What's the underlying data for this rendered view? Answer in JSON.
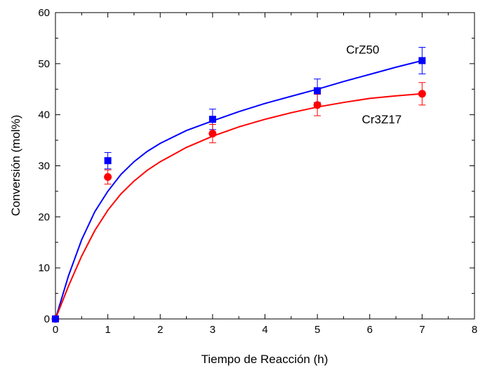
{
  "chart_data": {
    "type": "scatter",
    "xlabel": "Tiempo de Reacción (h)",
    "ylabel": "Conversión (mol%)",
    "xlim": [
      0,
      8
    ],
    "ylim": [
      0,
      60
    ],
    "x_ticks": [
      0,
      1,
      2,
      3,
      4,
      5,
      6,
      7,
      8
    ],
    "y_ticks": [
      0,
      10,
      20,
      30,
      40,
      50,
      60
    ],
    "x_tick_labels": [
      "0",
      "1",
      "2",
      "3",
      "4",
      "5",
      "6",
      "7",
      "8"
    ],
    "y_tick_labels": [
      "0",
      "10",
      "20",
      "30",
      "40",
      "50",
      "60"
    ],
    "grid": false,
    "series": [
      {
        "name": "CrZ50",
        "color": "#0000ff",
        "marker": "square",
        "x": [
          0,
          1,
          3,
          5,
          7
        ],
        "y": [
          0,
          31.0,
          39.1,
          44.7,
          50.6
        ],
        "error": [
          0,
          1.6,
          2.0,
          2.3,
          2.6
        ],
        "fit_curve": {
          "x": [
            0,
            0.25,
            0.5,
            0.75,
            1,
            1.25,
            1.5,
            1.75,
            2,
            2.5,
            3,
            3.5,
            4,
            4.5,
            5,
            5.5,
            6,
            6.5,
            7
          ],
          "y": [
            0,
            8.5,
            15.5,
            21.0,
            25.0,
            28.3,
            30.8,
            32.8,
            34.4,
            36.9,
            38.8,
            40.6,
            42.2,
            43.6,
            45.0,
            46.5,
            47.9,
            49.3,
            50.6
          ]
        }
      },
      {
        "name": "Cr3Z17",
        "color": "#ff0000",
        "marker": "circle",
        "x": [
          0,
          1,
          3,
          5,
          7
        ],
        "y": [
          0,
          27.8,
          36.3,
          41.9,
          44.1
        ],
        "error": [
          0,
          1.4,
          1.8,
          2.1,
          2.2
        ],
        "fit_curve": {
          "x": [
            0,
            0.25,
            0.5,
            0.75,
            1,
            1.25,
            1.5,
            1.75,
            2,
            2.5,
            3,
            3.5,
            4,
            4.5,
            5,
            5.5,
            6,
            6.5,
            7
          ],
          "y": [
            0,
            6.5,
            12.3,
            17.3,
            21.3,
            24.5,
            27.0,
            29.1,
            30.8,
            33.6,
            35.8,
            37.6,
            39.1,
            40.4,
            41.5,
            42.4,
            43.2,
            43.7,
            44.1
          ]
        }
      }
    ],
    "annotations": [
      {
        "text": "CrZ50",
        "x": 5.55,
        "y": 52.0
      },
      {
        "text": "Cr3Z17",
        "x": 5.85,
        "y": 38.3
      }
    ]
  }
}
